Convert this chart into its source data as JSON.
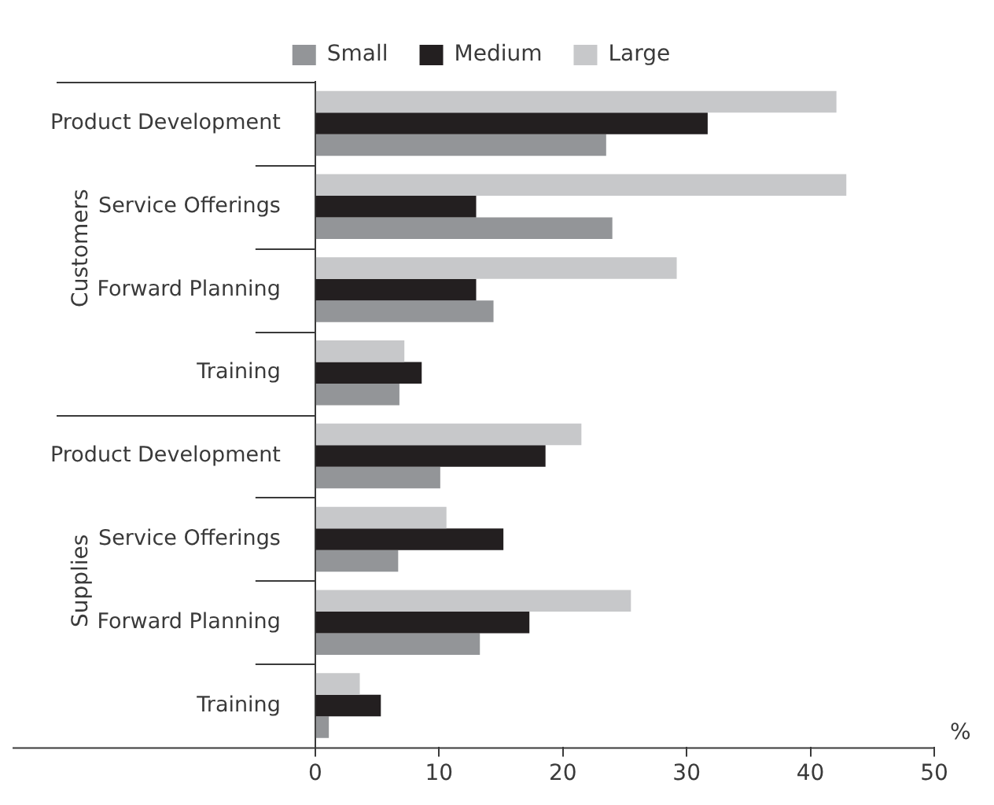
{
  "chart_data": {
    "type": "bar",
    "orientation": "horizontal",
    "xlabel": "%",
    "categories": [
      "Product Development",
      "Service Offerings",
      "Forward Planning",
      "Training",
      "Product Development",
      "Service Offerings",
      "Forward Planning",
      "Training"
    ],
    "series": [
      {
        "name": "Small",
        "color": "#939598",
        "values": [
          23.5,
          24.0,
          14.4,
          6.8,
          10.1,
          6.7,
          13.3,
          1.1
        ]
      },
      {
        "name": "Medium",
        "color": "#231f20",
        "values": [
          31.7,
          13.0,
          13.0,
          8.6,
          18.6,
          15.2,
          17.3,
          5.3
        ]
      },
      {
        "name": "Large",
        "color": "#c7c8ca",
        "values": [
          42.1,
          42.9,
          29.2,
          7.2,
          21.5,
          10.6,
          25.5,
          3.6
        ]
      }
    ],
    "annotations": [
      "Customers",
      "Supplies"
    ],
    "xlim": [
      0,
      50
    ],
    "xticks": [
      0,
      10,
      20,
      30,
      40,
      50
    ],
    "grid": false,
    "legend": "top"
  }
}
